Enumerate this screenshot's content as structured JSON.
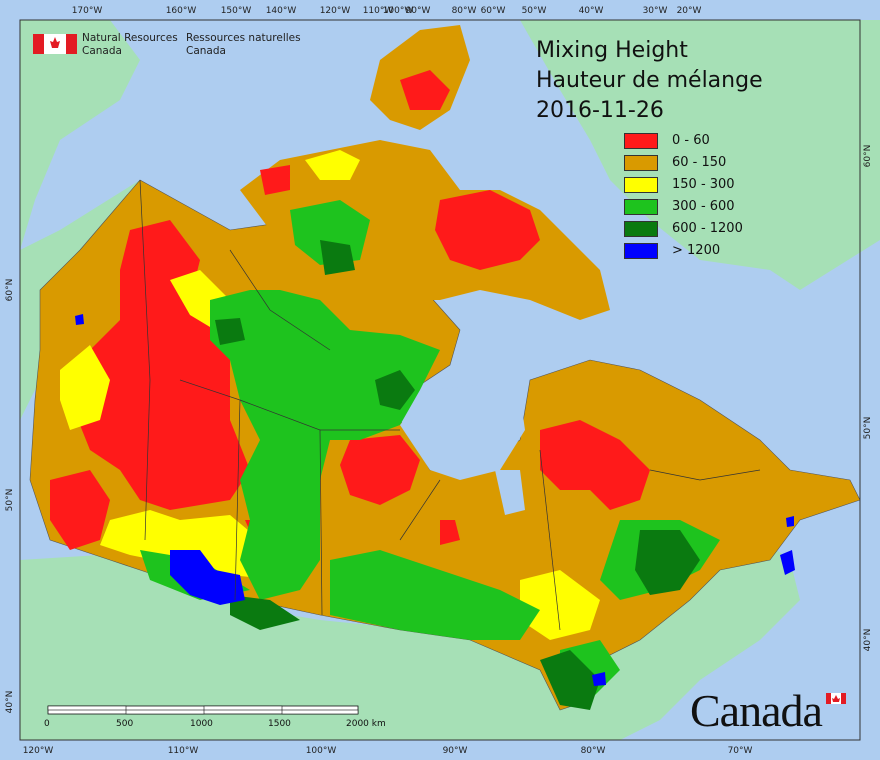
{
  "title": {
    "line1": "Mixing Height",
    "line2": "Hauteur de mélange",
    "date": "2016-11-26"
  },
  "legend": [
    {
      "label": "0 - 60",
      "color": "#ff1a1a"
    },
    {
      "label": "60 - 150",
      "color": "#d99a00"
    },
    {
      "label": "150 - 300",
      "color": "#ffff00"
    },
    {
      "label": "300 - 600",
      "color": "#1ec31e"
    },
    {
      "label": "600 - 1200",
      "color": "#0a7a10"
    },
    {
      "label": "> 1200",
      "color": "#0000ff"
    }
  ],
  "branding": {
    "agency_en_1": "Natural Resources",
    "agency_en_2": "Canada",
    "agency_fr_1": "Ressources naturelles",
    "agency_fr_2": "Canada",
    "wordmark": "Canada"
  },
  "scale_bar": {
    "labels": [
      "0",
      "500",
      "1000",
      "1500",
      "2000 km"
    ]
  },
  "graticule": {
    "top_longitudes": [
      "170°W",
      "160°W",
      "150°W",
      "140°W",
      "120°W",
      "110°W",
      "100°W",
      "90°W",
      "80°W",
      "60°W",
      "50°W",
      "40°W",
      "30°W",
      "20°W"
    ],
    "bottom_longitudes": [
      "120°W",
      "110°W",
      "100°W",
      "90°W",
      "80°W",
      "70°W"
    ],
    "left_latitudes": [
      "60°N",
      "50°N",
      "40°N"
    ],
    "right_latitudes": [
      "60°N",
      "50°N",
      "40°N"
    ]
  },
  "colors": {
    "ocean": "#aecdf0",
    "land_outside": "#a6e0b6",
    "border": "#333333"
  }
}
